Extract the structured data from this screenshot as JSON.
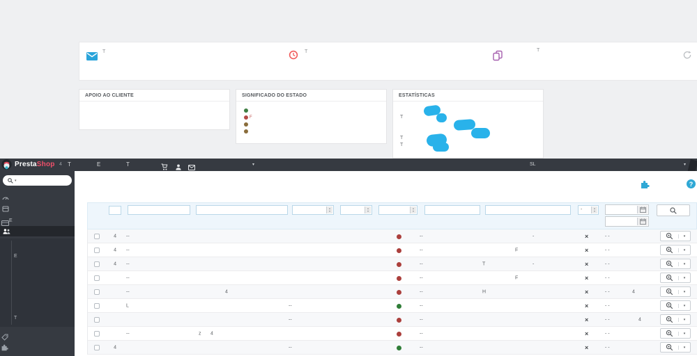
{
  "topWindow": {
    "toolbar": {
      "items": [
        {
          "icon": "envelope-icon",
          "color": "#2aa4da",
          "label": "T"
        },
        {
          "icon": "clock-icon",
          "color": "#f15b5b",
          "label": "T"
        },
        {
          "icon": "copy-icon",
          "color": "#a55fae",
          "label": "T"
        },
        {
          "icon": "refresh-icon",
          "color": "#bcbfc3",
          "label": ""
        }
      ]
    },
    "panels": {
      "apoio": {
        "title": "APOIO AO CLIENTE"
      },
      "significado": {
        "title": "SIGNIFICADO DO ESTADO",
        "legend": [
          {
            "color": "#3e7e43",
            "label": ""
          },
          {
            "color": "#b34a47",
            "label": "F"
          },
          {
            "color": "#8a6d3b",
            "label": ""
          },
          {
            "color": "#8a6d3b",
            "label": ""
          }
        ]
      },
      "estatisticas": {
        "title": "ESTATÍSTICAS",
        "labels": [
          "T",
          "T",
          "T"
        ],
        "highlight_color": "#29b2ea"
      }
    }
  },
  "admin": {
    "topbar": {
      "brand_presta": "Presta",
      "brand_shop": "Shop",
      "brand_shop_color": "#f0506a",
      "badge": "4",
      "items": [
        "T",
        "E",
        "T"
      ],
      "locale": "SL"
    },
    "sidebar": {
      "menu": [
        {
          "icon": "dashboard-icon",
          "label": ""
        },
        {
          "icon": "orders-icon",
          "label": ""
        },
        {
          "icon": "catalog-icon",
          "label": "E"
        },
        {
          "icon": "customer-service-icon",
          "label": "",
          "active": true
        }
      ],
      "submenu": [
        "E",
        "T"
      ],
      "footer_icons": [
        "tag-icon",
        "modules-icon"
      ]
    },
    "content": {
      "help_label": "?",
      "accent_color": "#2fa8d5"
    },
    "table": {
      "filters": {
        "select_placeholder": "-"
      },
      "status_colors": {
        "red": "#ab3f3c",
        "green": "#2f7d38"
      },
      "rows": [
        {
          "id": "4",
          "ref": "--",
          "dot": "red",
          "m1": "--",
          "t3": "-",
          "del": "×",
          "d1": "- -"
        },
        {
          "id": "4",
          "ref": "--",
          "dot": "red",
          "m1": "--",
          "t2": "F",
          "del": "×",
          "d1": "- -"
        },
        {
          "id": "4",
          "ref": "--",
          "dot": "red",
          "m1": "--",
          "t1": "T",
          "t3": "-",
          "del": "×",
          "d1": "- -"
        },
        {
          "ref": "--",
          "dot": "red",
          "m1": "--",
          "t2": "F",
          "del": "×",
          "d1": "- -"
        },
        {
          "ref": "--",
          "p3": "4",
          "dot": "red",
          "m1": "--",
          "t1": "H",
          "del": "×",
          "d1": "- -",
          "n1": "4"
        },
        {
          "ref": "L",
          "p4": "--",
          "dot": "green",
          "m1": "--",
          "del": "×",
          "d1": "- -"
        },
        {
          "p4": "--",
          "dot": "red",
          "m1": "--",
          "del": "×",
          "d1": "- -",
          "n2": "4"
        },
        {
          "ref": "--",
          "p1": "z",
          "p2": "4",
          "dot": "red",
          "m1": "--",
          "del": "×",
          "d1": "- -"
        },
        {
          "id": "4",
          "p4": "--",
          "dot": "green",
          "m1": "--",
          "del": "×",
          "d1": "- -"
        }
      ]
    }
  }
}
